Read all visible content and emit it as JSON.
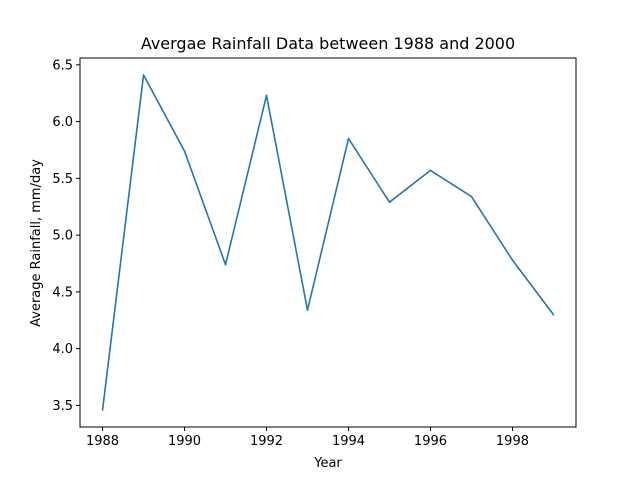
{
  "chart_data": {
    "type": "line",
    "title": "Avergae Rainfall Data between 1988 and 2000",
    "xlabel": "Year",
    "ylabel": "Average Rainfall, mm/day",
    "xlim": [
      1987.45,
      1999.55
    ],
    "ylim": [
      3.31,
      6.56
    ],
    "x_ticks": [
      1988,
      1990,
      1992,
      1994,
      1996,
      1998
    ],
    "x_tick_labels": [
      "1988",
      "1990",
      "1992",
      "1994",
      "1996",
      "1998"
    ],
    "y_ticks": [
      3.5,
      4.0,
      4.5,
      5.0,
      5.5,
      6.0,
      6.5
    ],
    "y_tick_labels": [
      "3.5",
      "4.0",
      "4.5",
      "5.0",
      "5.5",
      "6.0",
      "6.5"
    ],
    "grid": false,
    "legend": "none",
    "series": [
      {
        "color": "#1f77b4",
        "x": [
          1988,
          1989,
          1990,
          1991,
          1992,
          1993,
          1994,
          1995,
          1996,
          1997,
          1998,
          1999
        ],
        "y": [
          3.46,
          6.41,
          5.74,
          4.74,
          6.23,
          4.34,
          5.85,
          5.29,
          5.57,
          5.34,
          4.78,
          4.3
        ]
      }
    ]
  }
}
